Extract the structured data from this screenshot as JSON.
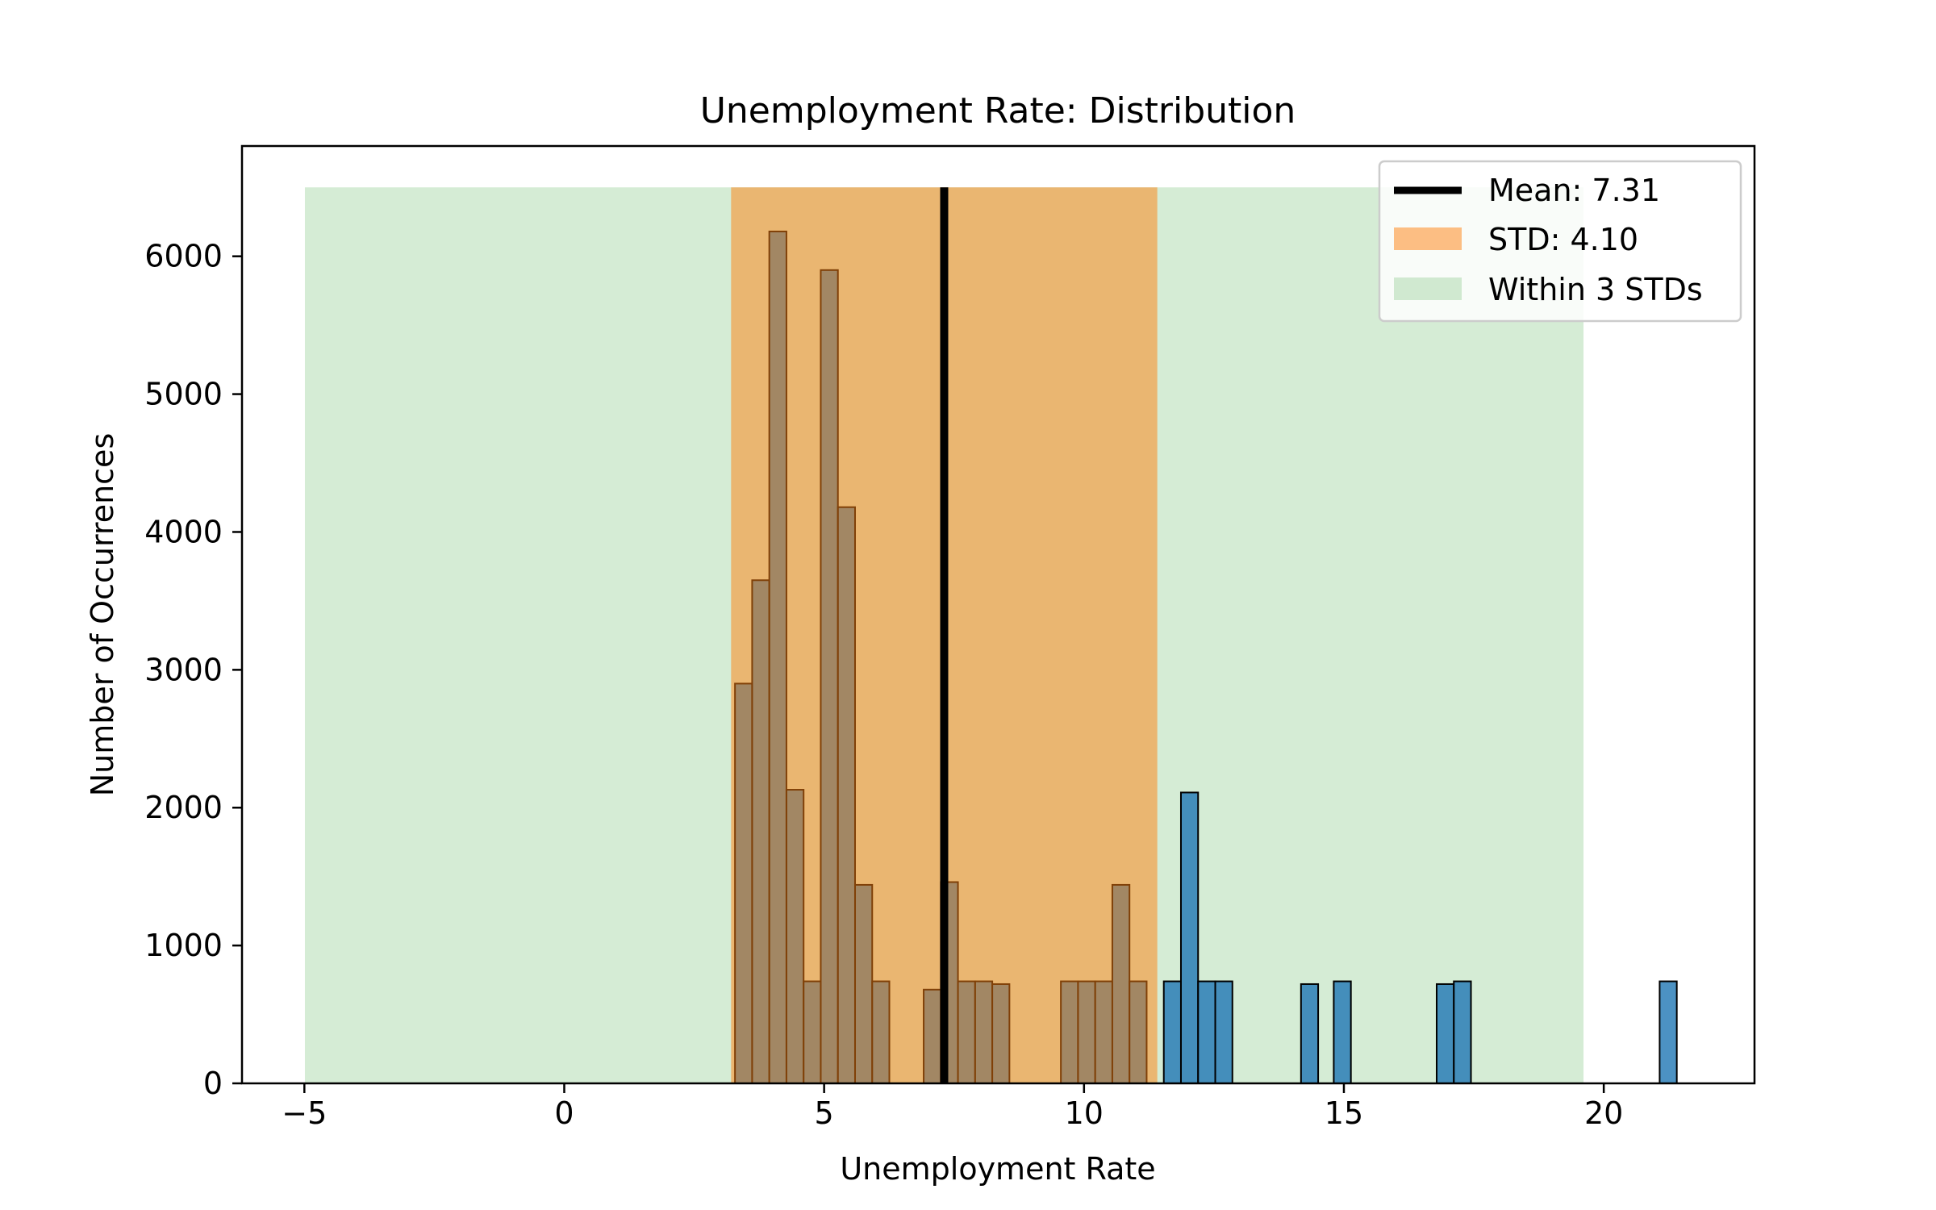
{
  "chart_data": {
    "type": "bar",
    "title": "Unemployment Rate: Distribution",
    "xlabel": "Unemployment Rate",
    "ylabel": "Number of Occurrences",
    "xlim": [
      -6.2,
      22.9
    ],
    "ylim": [
      0,
      6800
    ],
    "xticks": [
      -5,
      0,
      5,
      10,
      15,
      20
    ],
    "xtick_labels": [
      "−5",
      "0",
      "5",
      "10",
      "15",
      "20"
    ],
    "yticks": [
      0,
      1000,
      2000,
      3000,
      4000,
      5000,
      6000
    ],
    "grid": false,
    "legend_position": "top-right",
    "bin_width": 0.33,
    "histogram": {
      "bins": [
        {
          "x": 3.45,
          "count": 2900
        },
        {
          "x": 3.78,
          "count": 3650
        },
        {
          "x": 4.11,
          "count": 6180
        },
        {
          "x": 4.44,
          "count": 2130
        },
        {
          "x": 4.77,
          "count": 740
        },
        {
          "x": 5.1,
          "count": 5900
        },
        {
          "x": 5.43,
          "count": 4180
        },
        {
          "x": 5.76,
          "count": 1440
        },
        {
          "x": 6.09,
          "count": 740
        },
        {
          "x": 7.08,
          "count": 680
        },
        {
          "x": 7.41,
          "count": 1460
        },
        {
          "x": 7.74,
          "count": 740
        },
        {
          "x": 8.07,
          "count": 740
        },
        {
          "x": 8.4,
          "count": 720
        },
        {
          "x": 9.72,
          "count": 740
        },
        {
          "x": 10.05,
          "count": 740
        },
        {
          "x": 10.38,
          "count": 740
        },
        {
          "x": 10.71,
          "count": 1440
        },
        {
          "x": 11.04,
          "count": 740
        },
        {
          "x": 11.7,
          "count": 740
        },
        {
          "x": 12.03,
          "count": 2110
        },
        {
          "x": 12.36,
          "count": 740
        },
        {
          "x": 12.69,
          "count": 740
        },
        {
          "x": 14.34,
          "count": 720
        },
        {
          "x": 14.97,
          "count": 740
        },
        {
          "x": 16.95,
          "count": 720
        },
        {
          "x": 17.28,
          "count": 740
        },
        {
          "x": 21.24,
          "count": 740
        }
      ]
    },
    "mean": {
      "label": "Mean: 7.31",
      "value": 7.31
    },
    "std_band": {
      "label": "STD: 4.10",
      "from": 3.21,
      "to": 11.41,
      "top": 6500
    },
    "three_std_band": {
      "label": "Within 3 STDs",
      "from": -4.99,
      "to": 19.61,
      "top": 6500
    },
    "colors": {
      "bars": "#1f77b4",
      "std_band": "#ff7f0e",
      "three_std_band": "#2ca02c",
      "mean_line": "#000000",
      "bar_edge": "#000000"
    }
  }
}
